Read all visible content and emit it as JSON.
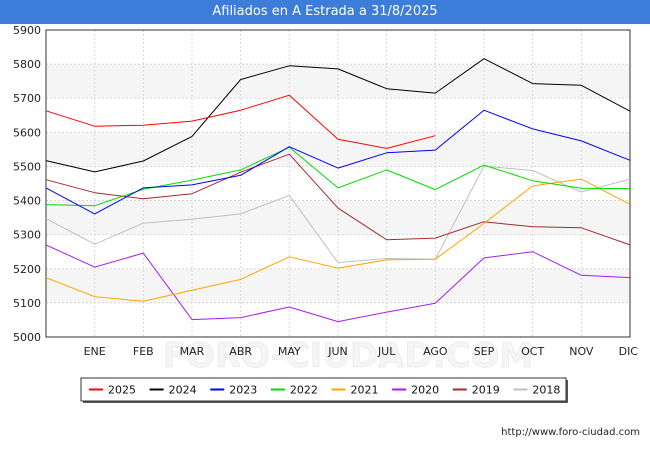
{
  "chart_data": {
    "type": "line",
    "title": "Afiliados en A Estrada a 31/8/2025",
    "categories": [
      "",
      "ENE",
      "FEB",
      "MAR",
      "ABR",
      "MAY",
      "JUN",
      "JUL",
      "AGO",
      "SEP",
      "OCT",
      "NOV",
      "DIC"
    ],
    "ylim": [
      5000,
      5900
    ],
    "yticks": [
      5000,
      5100,
      5200,
      5300,
      5400,
      5500,
      5600,
      5700,
      5800,
      5900
    ],
    "grid": true,
    "legend_position": "bottom",
    "series": [
      {
        "name": "2025",
        "color": "#ff0000",
        "values": [
          5663,
          5618,
          5621,
          5633,
          5665,
          5709,
          5580,
          5553,
          5590,
          null,
          null,
          null,
          null
        ]
      },
      {
        "name": "2024",
        "color": "#000000",
        "values": [
          5517,
          5484,
          5516,
          5588,
          5755,
          5795,
          5786,
          5728,
          5715,
          5816,
          5743,
          5738,
          5662
        ]
      },
      {
        "name": "2023",
        "color": "#0000ff",
        "values": [
          5437,
          5361,
          5437,
          5446,
          5474,
          5558,
          5495,
          5540,
          5548,
          5665,
          5610,
          5575,
          5518
        ]
      },
      {
        "name": "2022",
        "color": "#00dd00",
        "values": [
          5388,
          5385,
          5433,
          5460,
          5490,
          5556,
          5437,
          5490,
          5432,
          5504,
          5458,
          5436,
          5435
        ]
      },
      {
        "name": "2021",
        "color": "#ffa500",
        "values": [
          5174,
          5118,
          5105,
          5137,
          5169,
          5235,
          5202,
          5226,
          5228,
          5333,
          5443,
          5463,
          5389
        ]
      },
      {
        "name": "2020",
        "color": "#a020f0",
        "values": [
          5270,
          5205,
          5246,
          5051,
          5057,
          5088,
          5045,
          5073,
          5099,
          5232,
          5250,
          5181,
          5174
        ]
      },
      {
        "name": "2019",
        "color": "#a52a2a",
        "values": [
          5461,
          5423,
          5405,
          5420,
          5483,
          5536,
          5378,
          5285,
          5290,
          5338,
          5323,
          5320,
          5270
        ]
      },
      {
        "name": "2018",
        "color": "#c0c0c0",
        "values": [
          5347,
          5272,
          5334,
          5345,
          5361,
          5415,
          5218,
          5230,
          5228,
          5501,
          5488,
          5425,
          5463
        ]
      }
    ],
    "source": "http://www.foro-ciudad.com"
  }
}
